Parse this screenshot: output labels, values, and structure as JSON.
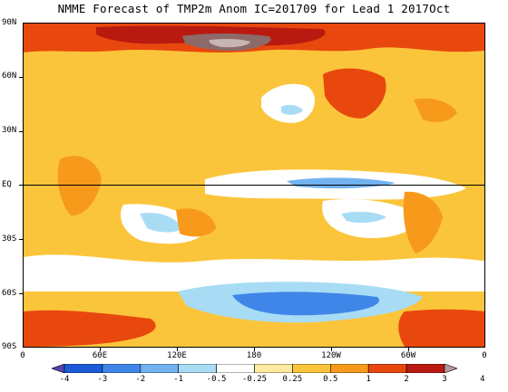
{
  "title": "NMME Forecast of TMP2m Anom IC=201709 for Lead 1 2017Oct",
  "lat_labels": [
    "90N",
    "60N",
    "30N",
    "EQ",
    "30S",
    "60S",
    "90S"
  ],
  "lon_labels": [
    "0",
    "60E",
    "120E",
    "180",
    "120W",
    "60W",
    "0"
  ],
  "colorbar": {
    "labels": [
      "-4",
      "-3",
      "-2",
      "-1",
      "-0.5",
      "-0.25",
      "0.25",
      "0.5",
      "1",
      "2",
      "3",
      "4"
    ],
    "colors": [
      "#5a3fb0",
      "#1d5ad6",
      "#3f86e8",
      "#72b2f0",
      "#a8dcf5",
      "#ffffff",
      "#fde9a0",
      "#fbc53b",
      "#f79a1c",
      "#e8480d",
      "#b81a10",
      "#b99898"
    ]
  },
  "legend_colors": {
    "ocean_neutral": "#ffffff",
    "weak_warm": "#fbc53b",
    "warm": "#f79a1c",
    "strong_warm": "#e8480d",
    "very_strong_warm": "#b81a10",
    "extreme_warm": "#8c6a6a",
    "cool": "#72b2f0",
    "strong_cool": "#3f86e8"
  }
}
